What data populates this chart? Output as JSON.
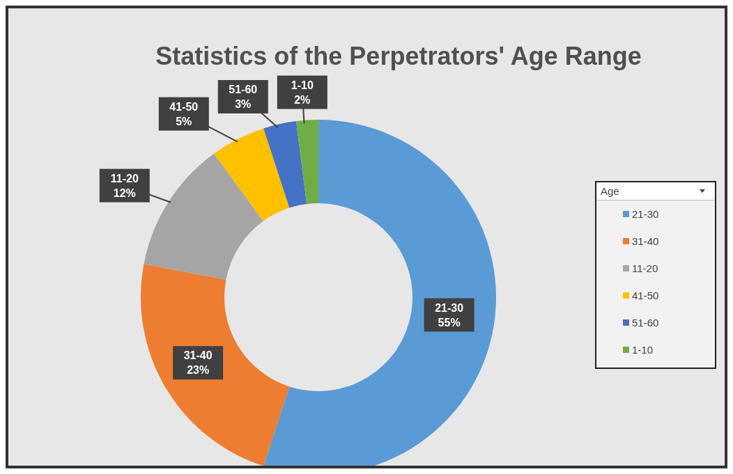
{
  "chart_data": {
    "type": "donut",
    "title": "Statistics of the Perpetrators' Age Range",
    "legend_title": "Age",
    "legend": "right",
    "categories": [
      "21-30",
      "31-40",
      "11-20",
      "41-50",
      "51-60",
      "1-10"
    ],
    "values": [
      55,
      23,
      12,
      5,
      3,
      2
    ],
    "value_labels": [
      "55%",
      "23%",
      "12%",
      "5%",
      "3%",
      "2%"
    ],
    "colors": [
      "#5b9bd5",
      "#ed7d31",
      "#a5a5a5",
      "#ffc000",
      "#4472c4",
      "#70ad47"
    ]
  }
}
